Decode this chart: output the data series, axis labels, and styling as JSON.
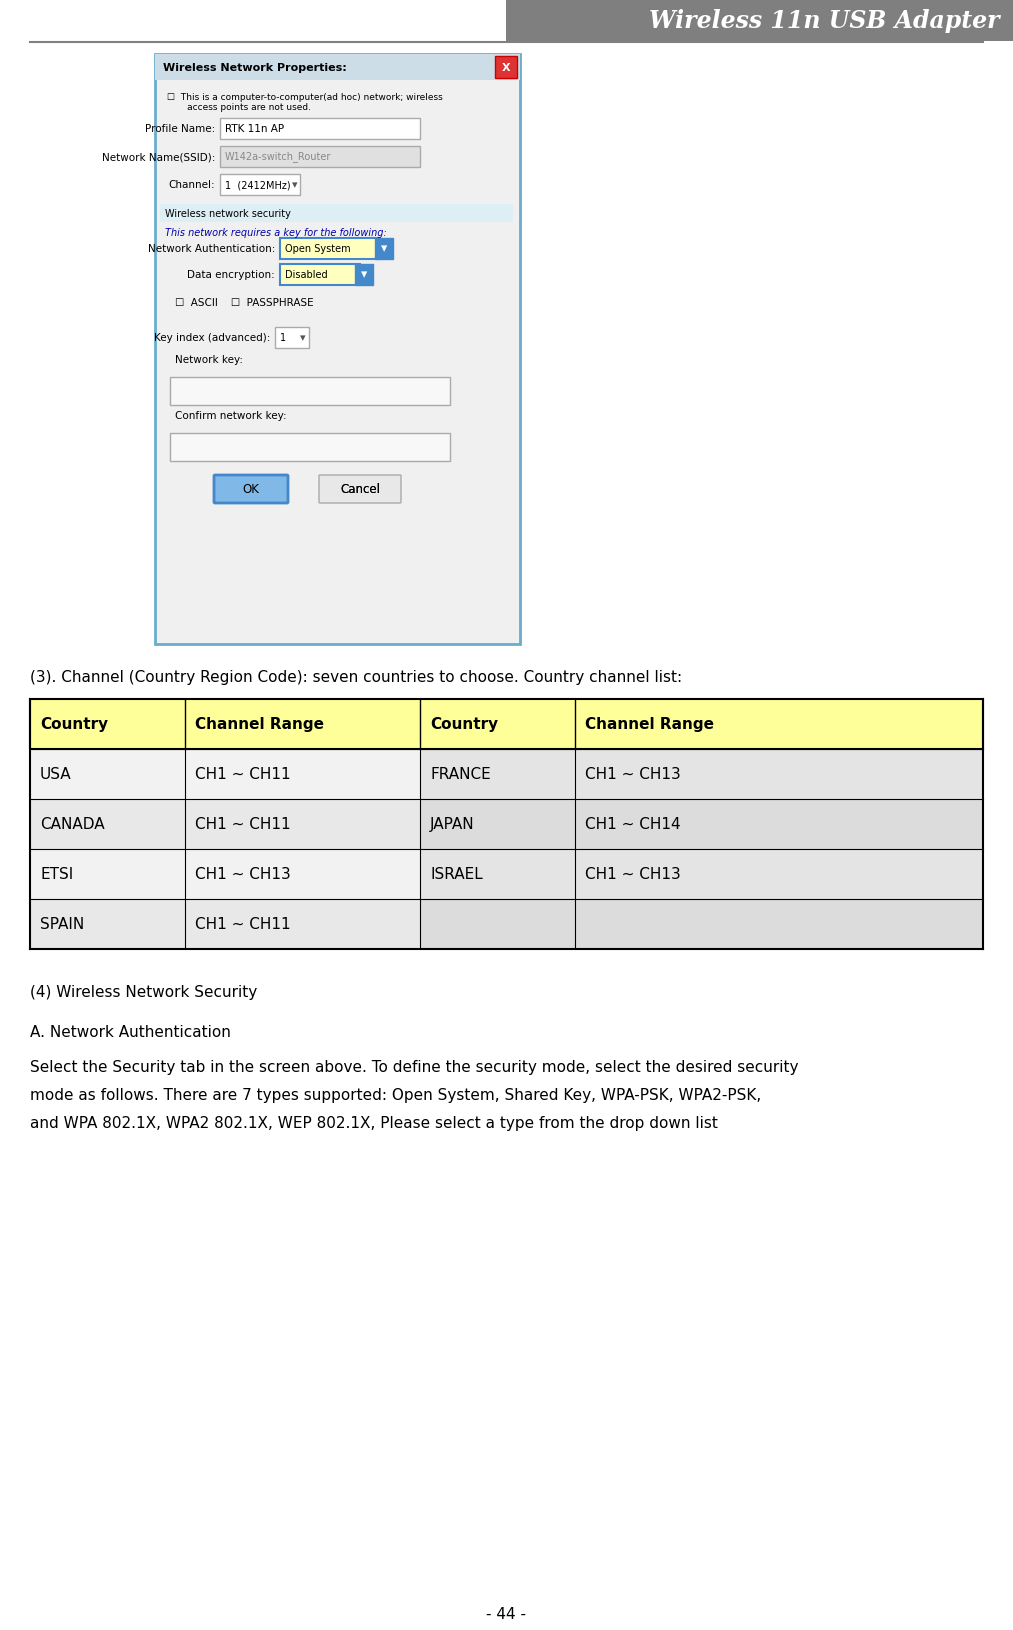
{
  "title": "Wireless 11n USB Adapter",
  "title_bg": "#7f7f7f",
  "title_color": "#ffffff",
  "title_fontsize": 17,
  "page_bg": "#ffffff",
  "header_line_color": "#808080",
  "channel_intro": "(3). Channel (Country Region Code): seven countries to choose. Country channel list:",
  "table_header_bg": "#ffff99",
  "table_header_color": "#000000",
  "table_data_bg_odd": "#f2f2f2",
  "table_data_bg_even": "#e8e8e8",
  "table_border_color": "#000000",
  "table_headers": [
    "Country",
    "Channel Range",
    "Country",
    "Channel Range"
  ],
  "table_data": [
    [
      "USA",
      "CH1 ~ CH11",
      "FRANCE",
      "CH1 ~ CH13"
    ],
    [
      "CANADA",
      "CH1 ~ CH11",
      "JAPAN",
      "CH1 ~ CH14"
    ],
    [
      "ETSI",
      "CH1 ~ CH13",
      "ISRAEL",
      "CH1 ~ CH13"
    ],
    [
      "SPAIN",
      "CH1 ~ CH11",
      "",
      ""
    ]
  ],
  "section4_title": "(4) Wireless Network Security",
  "section4a_title": "A. Network Authentication",
  "section4a_lines": [
    "Select the Security tab in the screen above. To define the security mode, select the desired security",
    "mode as follows. There are 7 types supported: Open System, Shared Key, WPA-PSK, WPA2-PSK,",
    "and WPA 802.1X, WPA2 802.1X, WEP 802.1X, Please select a type from the drop down list"
  ],
  "page_number": "- 44 -",
  "dialog_title": "Wireless Network Properties:",
  "dialog_border_color": "#6aaccc",
  "dialog_titlebar_bg": "#ccdde8",
  "dialog_x_color": "#dd3333",
  "dialog_body_bg": "#f0f0f0",
  "dialog_field_bg": "#ffffff",
  "dialog_disabled_bg": "#e0e0e0",
  "dialog_section_bg": "#ddeef5",
  "dropdown_bg": "#ffffc0",
  "ok_btn_bg": "#80b8e8",
  "ok_btn_border": "#4488cc",
  "cancel_btn_bg": "#e8e8e8",
  "cancel_btn_border": "#aaaaaa"
}
